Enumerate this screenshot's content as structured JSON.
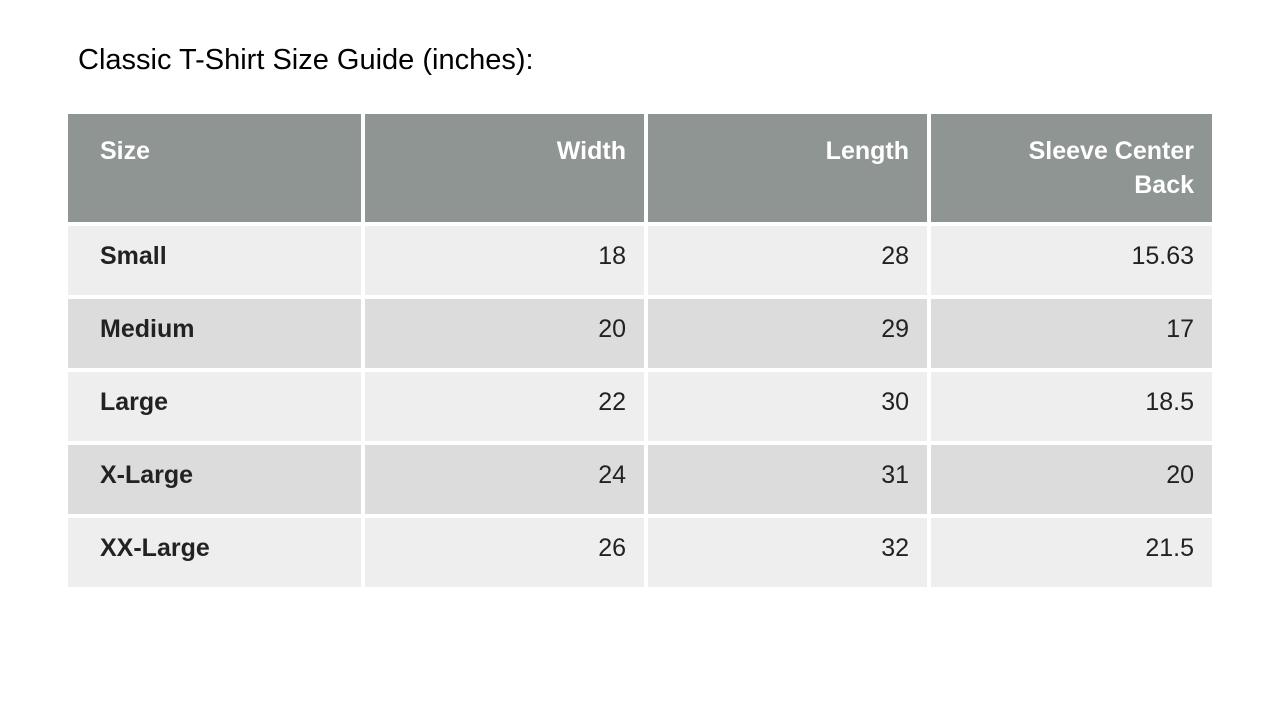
{
  "title": "Classic T-Shirt Size Guide (inches):",
  "table": {
    "headers": [
      "Size",
      "Width",
      "Length",
      "Sleeve Center Back"
    ],
    "rows": [
      [
        "Small",
        "18",
        "28",
        "15.63"
      ],
      [
        "Medium",
        "20",
        "29",
        "17"
      ],
      [
        "Large",
        "22",
        "30",
        "18.5"
      ],
      [
        "X-Large",
        "24",
        "31",
        "20"
      ],
      [
        "XX-Large",
        "26",
        "32",
        "21.5"
      ]
    ]
  },
  "colors": {
    "header_bg": "#8f9593",
    "row_light": "#edeeed",
    "row_dark": "#dcdcdc"
  }
}
